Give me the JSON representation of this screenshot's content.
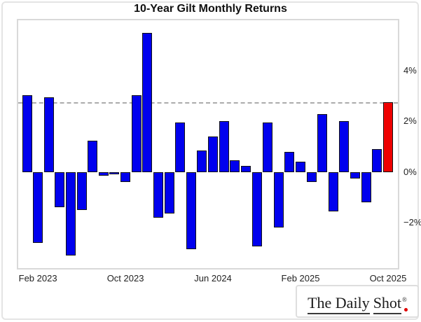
{
  "title": "10-Year Gilt Monthly Returns",
  "chart_data": {
    "type": "bar",
    "x": [
      "Jan 2023",
      "Feb 2023",
      "Mar 2023",
      "Apr 2023",
      "May 2023",
      "Jun 2023",
      "Jul 2023",
      "Aug 2023",
      "Sep 2023",
      "Oct 2023",
      "Nov 2023",
      "Dec 2023",
      "Jan 2024",
      "Feb 2024",
      "Mar 2024",
      "Apr 2024",
      "May 2024",
      "Jun 2024",
      "Jul 2024",
      "Aug 2024",
      "Sep 2024",
      "Oct 2024",
      "Nov 2024",
      "Dec 2024",
      "Jan 2025",
      "Feb 2025",
      "Mar 2025",
      "Apr 2025",
      "May 2025",
      "Jun 2025",
      "Jul 2025",
      "Aug 2025",
      "Sep 2025",
      "Oct 2025"
    ],
    "values": [
      3.05,
      -2.8,
      2.95,
      -1.4,
      -3.3,
      -1.5,
      1.25,
      -0.15,
      -0.1,
      -0.4,
      3.05,
      5.5,
      -1.8,
      -1.65,
      1.95,
      -3.05,
      0.85,
      1.4,
      2.0,
      0.45,
      0.25,
      -2.95,
      1.95,
      -2.2,
      0.8,
      0.4,
      -0.4,
      2.3,
      -1.55,
      2.0,
      -0.25,
      -1.2,
      0.9,
      2.75
    ],
    "title": "10-Year Gilt Monthly Returns",
    "xlabel": "",
    "ylabel": "",
    "ylim": [
      -3.8,
      6.0
    ],
    "grid": false,
    "bar_color": "#0000ee",
    "highlight_index": 33,
    "highlight_color": "#ee0000",
    "bar_edge_color": "#121212",
    "ref_line": {
      "value": 2.75,
      "style": "dashed",
      "color": "#ababab"
    },
    "y_ticks": [
      {
        "value": 4,
        "label": "4%"
      },
      {
        "value": 2,
        "label": "2%"
      },
      {
        "value": 0,
        "label": "0%"
      },
      {
        "value": -2,
        "label": "−2%"
      }
    ],
    "x_ticks": [
      {
        "index": 1,
        "label": "Feb 2023"
      },
      {
        "index": 9,
        "label": "Oct 2023"
      },
      {
        "index": 17,
        "label": "Jun 2024"
      },
      {
        "index": 25,
        "label": "Feb 2025"
      },
      {
        "index": 33,
        "label": "Oct 2025"
      }
    ]
  },
  "footer": {
    "logo_part1": "The Daily",
    "logo_part2": "Shot",
    "logo_reg": "®"
  }
}
